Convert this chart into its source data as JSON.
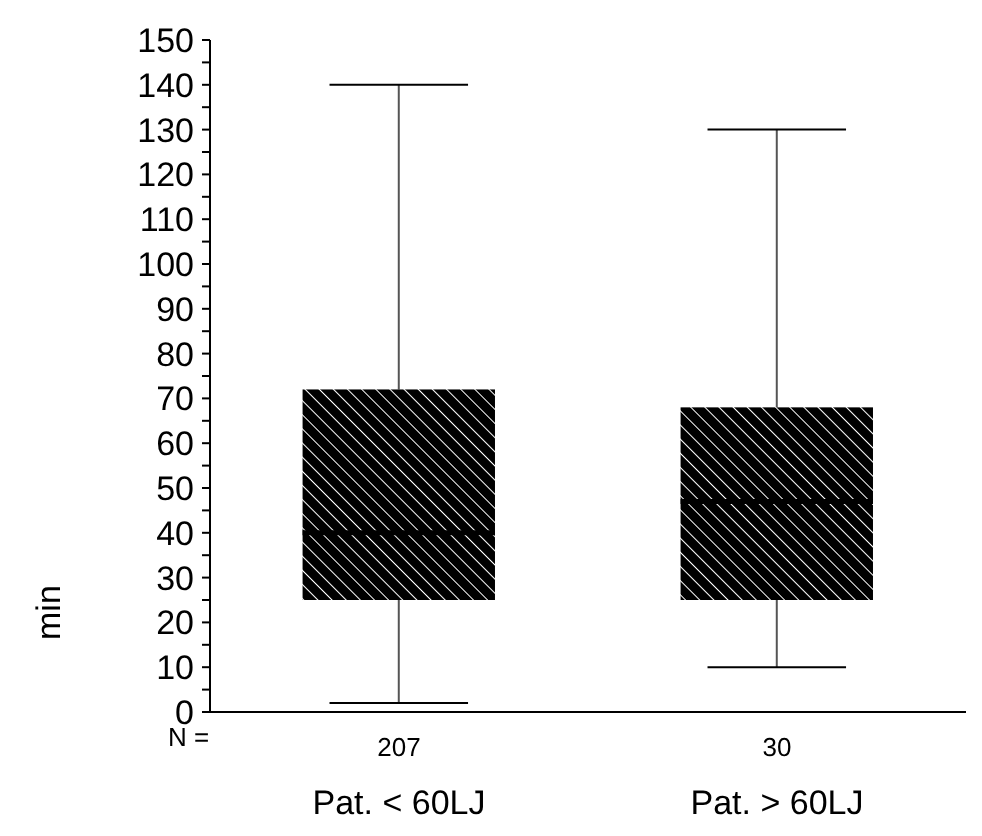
{
  "chart_data": {
    "type": "box",
    "ylabel": "min",
    "categories": [
      "Pat. < 60LJ",
      "Pat. > 60LJ"
    ],
    "boxes": [
      {
        "low": 2,
        "q1": 25,
        "median": 40,
        "q3": 72,
        "high": 140
      },
      {
        "low": 10,
        "q1": 25,
        "median": 47,
        "q3": 68,
        "high": 130
      }
    ],
    "color": "#000000",
    "ylim": [
      0,
      150
    ],
    "yticks": [
      0,
      {
        "value": 5,
        "label": null
      },
      10,
      {
        "value": 15,
        "label": null
      },
      20,
      {
        "value": 25,
        "label": null
      },
      30,
      {
        "value": 35,
        "label": null
      },
      40,
      {
        "value": 45,
        "label": null
      },
      50,
      {
        "value": 55,
        "label": null
      },
      60,
      {
        "value": 65,
        "label": null
      },
      70,
      {
        "value": 75,
        "label": null
      },
      80,
      {
        "value": 85,
        "label": null
      },
      90,
      {
        "value": 95,
        "label": null
      },
      100,
      {
        "value": 105,
        "label": null
      },
      110,
      {
        "value": 115,
        "label": null
      },
      120,
      {
        "value": 125,
        "label": null
      },
      130,
      {
        "value": 135,
        "label": null
      },
      140,
      {
        "value": 145,
        "label": null
      },
      150
    ],
    "annotations": [
      "N =",
      "207",
      "30"
    ],
    "grid": false,
    "legend": false
  }
}
